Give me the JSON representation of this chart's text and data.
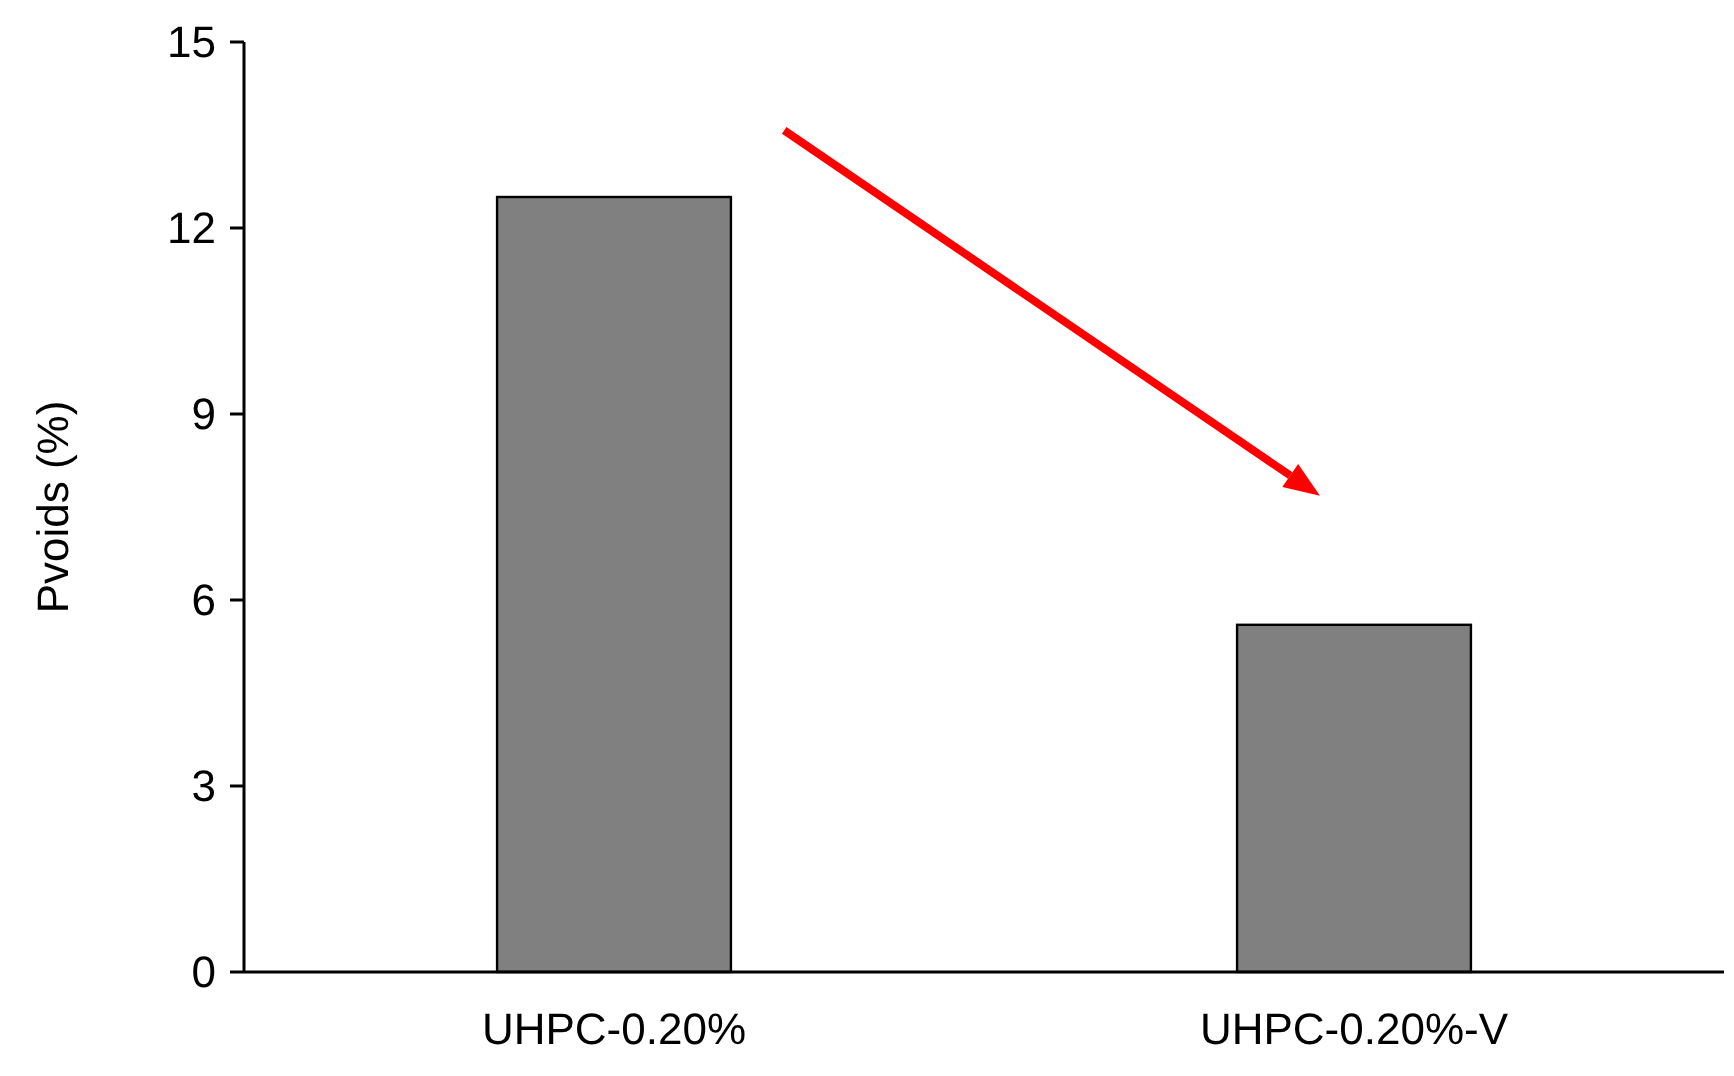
{
  "chart_data": {
    "type": "bar",
    "ylabel": "Pvoids (%)",
    "categories": [
      "UHPC-0.20%",
      "UHPC-0.20%-V"
    ],
    "values": [
      12.5,
      5.6
    ],
    "color": "#808080",
    "ylim": [
      0,
      15
    ],
    "yticks": [
      0,
      3,
      6,
      9,
      12,
      15
    ],
    "grid": false
  }
}
